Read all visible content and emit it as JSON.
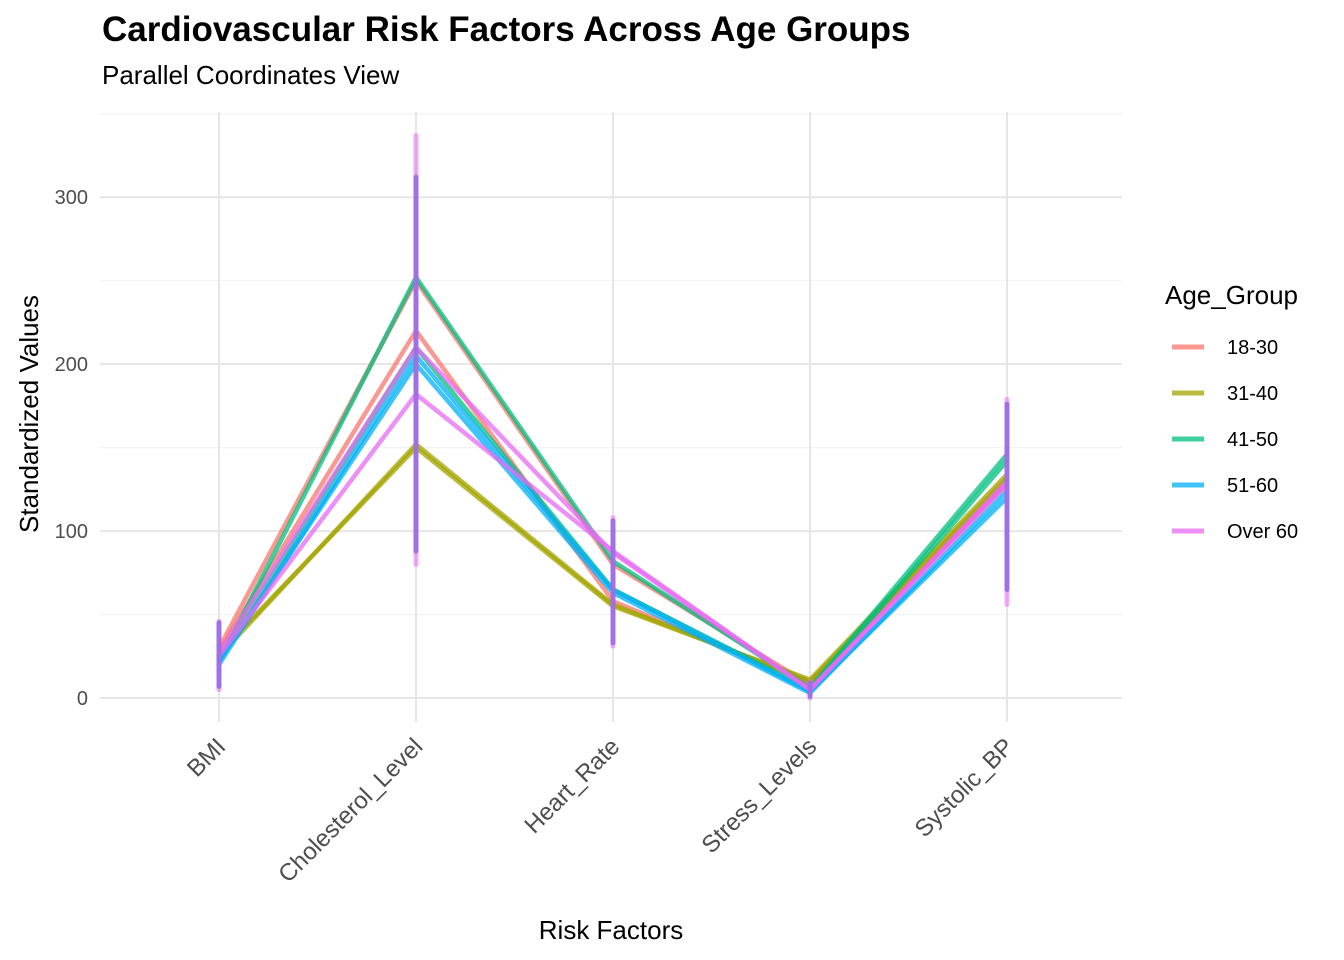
{
  "chart_data": {
    "type": "line",
    "title": "Cardiovascular Risk Factors Across Age Groups",
    "subtitle": "Parallel Coordinates View",
    "xlabel": "Risk Factors",
    "ylabel": "Standardized Values",
    "categories": [
      "BMI",
      "Cholesterol_Level",
      "Heart_Rate",
      "Stress_Levels",
      "Systolic_BP"
    ],
    "ylim": [
      -15,
      350
    ],
    "yticks": [
      0,
      100,
      200,
      300
    ],
    "grid": true,
    "legend": {
      "title": "Age_Group",
      "position": "right"
    },
    "series": [
      {
        "name": "18-30",
        "color": "#F8766D",
        "lines": [
          [
            30,
            250,
            80,
            8,
            130
          ],
          [
            28,
            220,
            58,
            9,
            128
          ]
        ]
      },
      {
        "name": "31-40",
        "color": "#A3A500",
        "lines": [
          [
            25,
            152,
            56,
            10,
            132
          ],
          [
            27,
            150,
            55,
            11,
            134
          ]
        ]
      },
      {
        "name": "41-50",
        "color": "#00BF7D",
        "lines": [
          [
            22,
            252,
            82,
            6,
            146
          ],
          [
            24,
            210,
            65,
            5,
            142
          ]
        ]
      },
      {
        "name": "51-60",
        "color": "#00B0F6",
        "lines": [
          [
            20,
            205,
            65,
            4,
            120
          ],
          [
            22,
            200,
            63,
            3,
            124
          ]
        ]
      },
      {
        "name": "Over 60",
        "color": "#E76BF3",
        "lines": [
          [
            25,
            182,
            88,
            5,
            130
          ],
          [
            27,
            210,
            87,
            5,
            128
          ]
        ]
      }
    ],
    "ranges": {
      "color": "#9D6FE3",
      "columns": [
        {
          "min": 7,
          "max": 45,
          "extended_min": 5,
          "extended_max": 46
        },
        {
          "min": 88,
          "max": 312,
          "extended_min": 80,
          "extended_max": 337
        },
        {
          "min": 33,
          "max": 106,
          "extended_min": 31,
          "extended_max": 108
        },
        {
          "min": 1,
          "max": 9,
          "extended_min": 0,
          "extended_max": 10
        },
        {
          "min": 65,
          "max": 176,
          "extended_min": 56,
          "extended_max": 179
        }
      ]
    }
  }
}
